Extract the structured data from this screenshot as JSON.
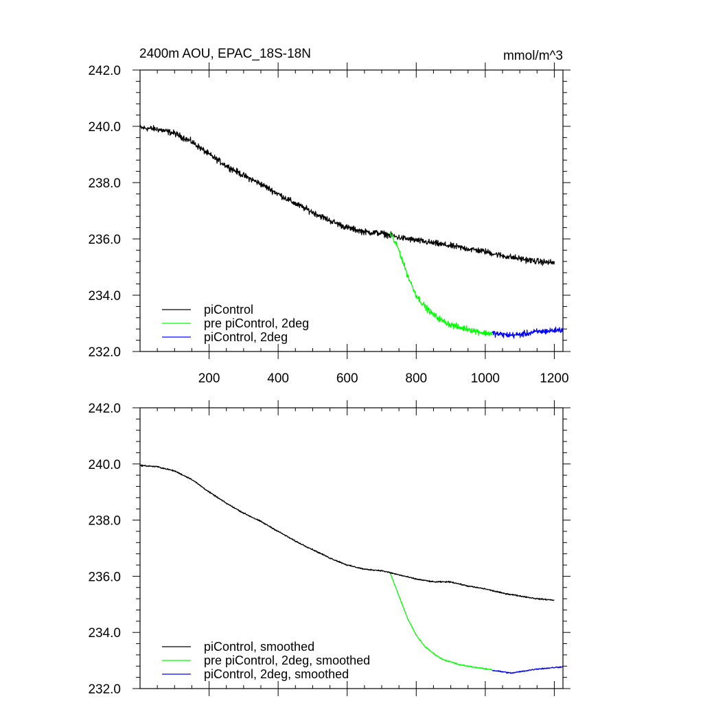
{
  "chart_data": [
    {
      "type": "line",
      "panel": "top",
      "title": "2400m AOU, EPAC_18S-18N",
      "units": "mmol/m^3",
      "xlim": [
        0,
        1225
      ],
      "ylim": [
        232.0,
        242.0
      ],
      "x_ticks": [
        200,
        400,
        600,
        800,
        1000,
        1200
      ],
      "x_tick_labels": [
        "200",
        "400",
        "600",
        "800",
        "1000",
        "1200"
      ],
      "y_ticks": [
        232.0,
        234.0,
        236.0,
        238.0,
        240.0,
        242.0
      ],
      "y_tick_labels": [
        "232.0",
        "234.0",
        "236.0",
        "238.0",
        "240.0",
        "242.0"
      ],
      "legend_position": "bottom-left",
      "noise": 0.16,
      "series": [
        {
          "name": "piControl",
          "color": "#000000",
          "x": [
            0,
            50,
            100,
            150,
            200,
            250,
            300,
            350,
            400,
            450,
            500,
            550,
            600,
            650,
            700,
            750,
            800,
            850,
            900,
            950,
            1000,
            1050,
            1100,
            1150,
            1200
          ],
          "y": [
            239.95,
            239.9,
            239.75,
            239.45,
            239.0,
            238.6,
            238.25,
            237.95,
            237.6,
            237.25,
            236.95,
            236.65,
            236.4,
            236.25,
            236.2,
            236.05,
            235.95,
            235.85,
            235.75,
            235.65,
            235.55,
            235.4,
            235.3,
            235.2,
            235.15
          ]
        },
        {
          "name": "pre piControl, 2deg",
          "color": "#00ff00",
          "x": [
            725,
            750,
            775,
            800,
            825,
            850,
            875,
            900,
            925,
            950,
            975,
            1000,
            1020
          ],
          "y": [
            236.2,
            235.6,
            234.7,
            234.0,
            233.6,
            233.3,
            233.1,
            232.95,
            232.85,
            232.8,
            232.72,
            232.65,
            232.65
          ]
        },
        {
          "name": "piControl, 2deg",
          "color": "#0000ff",
          "x": [
            1020,
            1050,
            1075,
            1100,
            1125,
            1150,
            1175,
            1200,
            1225
          ],
          "y": [
            232.65,
            232.6,
            232.58,
            232.6,
            232.65,
            232.7,
            232.72,
            232.75,
            232.78
          ]
        }
      ]
    },
    {
      "type": "line",
      "panel": "bottom",
      "title": "",
      "units": "",
      "xlim": [
        0,
        1225
      ],
      "ylim": [
        232.0,
        242.0
      ],
      "x_ticks": [
        200,
        400,
        600,
        800,
        1000,
        1200
      ],
      "x_tick_labels": [],
      "y_ticks": [
        232.0,
        234.0,
        236.0,
        238.0,
        240.0,
        242.0
      ],
      "y_tick_labels": [
        "232.0",
        "234.0",
        "236.0",
        "238.0",
        "240.0",
        "242.0"
      ],
      "legend_position": "bottom-left",
      "noise": 0.035,
      "series": [
        {
          "name": "piControl, smoothed",
          "color": "#000000",
          "x": [
            0,
            50,
            100,
            150,
            200,
            250,
            300,
            350,
            400,
            450,
            500,
            550,
            600,
            650,
            700,
            750,
            800,
            850,
            900,
            950,
            1000,
            1050,
            1100,
            1150,
            1200
          ],
          "y": [
            239.95,
            239.9,
            239.75,
            239.45,
            239.0,
            238.6,
            238.25,
            237.95,
            237.6,
            237.25,
            236.95,
            236.65,
            236.4,
            236.25,
            236.2,
            236.05,
            235.9,
            235.8,
            235.8,
            235.65,
            235.55,
            235.4,
            235.3,
            235.2,
            235.15
          ]
        },
        {
          "name": "pre piControl, 2deg, smoothed",
          "color": "#00ff00",
          "x": [
            725,
            750,
            775,
            800,
            825,
            850,
            875,
            900,
            925,
            950,
            975,
            1000,
            1020
          ],
          "y": [
            236.1,
            235.3,
            234.5,
            233.9,
            233.5,
            233.25,
            233.05,
            232.95,
            232.85,
            232.8,
            232.75,
            232.7,
            232.68
          ]
        },
        {
          "name": "piControl, 2deg, smoothed",
          "color": "#0000ff",
          "x": [
            1020,
            1050,
            1075,
            1100,
            1125,
            1150,
            1175,
            1200,
            1225
          ],
          "y": [
            232.65,
            232.6,
            232.55,
            232.6,
            232.65,
            232.7,
            232.72,
            232.75,
            232.78
          ]
        }
      ]
    }
  ]
}
